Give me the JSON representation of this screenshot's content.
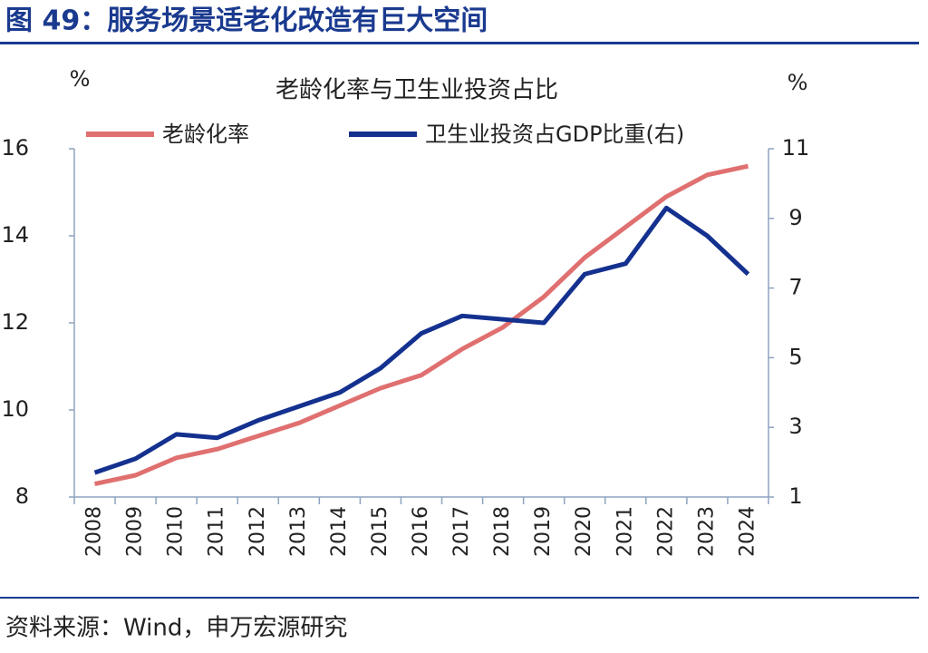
{
  "header": "图 49：服务场景适老化改造有巨大空间",
  "source": "资料来源：Wind，申万宏源研究",
  "chart_data": {
    "type": "line",
    "title": "老龄化率与卫生业投资占比",
    "y_unit": "%",
    "y2_unit": "%",
    "categories": [
      "2008",
      "2009",
      "2010",
      "2011",
      "2012",
      "2013",
      "2014",
      "2015",
      "2016",
      "2017",
      "2018",
      "2019",
      "2020",
      "2021",
      "2022",
      "2023",
      "2024"
    ],
    "series": [
      {
        "name": "老龄化率",
        "color": "#e07070",
        "values": [
          8.3,
          8.5,
          8.9,
          9.1,
          9.4,
          9.7,
          10.1,
          10.5,
          10.8,
          11.4,
          11.9,
          12.6,
          13.5,
          14.2,
          14.9,
          15.4,
          15.6
        ]
      },
      {
        "name": "卫生业投资占GDP比重(右)",
        "color": "#14318f",
        "axis": "y2",
        "values": [
          1.7,
          2.1,
          2.8,
          2.7,
          3.2,
          3.6,
          4.0,
          4.7,
          5.7,
          6.2,
          6.1,
          6.0,
          7.4,
          7.7,
          9.3,
          8.5,
          7.4
        ]
      }
    ],
    "ylim": [
      8,
      16
    ],
    "yticks": [
      8,
      10,
      12,
      14,
      16
    ],
    "y2lim": [
      1,
      11
    ],
    "y2ticks": [
      1,
      3,
      5,
      7,
      9,
      11
    ],
    "grid": false
  }
}
